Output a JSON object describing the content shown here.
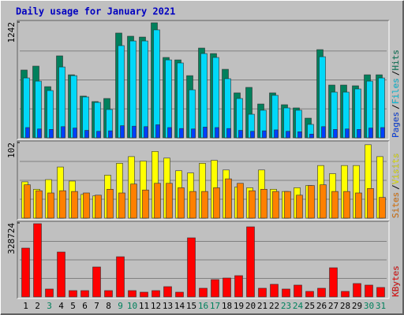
{
  "title": "Daily usage for January 2021",
  "legend_separator": "/",
  "chart_data": [
    {
      "type": "bar",
      "ylim": [
        0,
        1242
      ],
      "yticks": [
        1242
      ],
      "series": [
        {
          "name": "Hits",
          "color": "#00805c",
          "values": [
            727,
            769,
            549,
            879,
            676,
            448,
            389,
            422,
            1124,
            1090,
            1081,
            1234,
            862,
            836,
            667,
            963,
            904,
            735,
            482,
            541,
            363,
            482,
            355,
            321,
            211,
            946,
            566,
            566,
            558,
            676,
            676
          ]
        },
        {
          "name": "Files",
          "color": "#00d8f8",
          "values": [
            642,
            608,
            507,
            760,
            667,
            439,
            380,
            304,
            989,
            1039,
            1039,
            1158,
            836,
            803,
            515,
            904,
            862,
            634,
            422,
            253,
            296,
            456,
            321,
            296,
            144,
            870,
            490,
            490,
            524,
            608,
            642
          ]
        },
        {
          "name": "Pages",
          "color": "#0040ff",
          "values": [
            110,
            95,
            90,
            120,
            105,
            80,
            70,
            75,
            130,
            125,
            120,
            140,
            110,
            100,
            95,
            115,
            110,
            100,
            80,
            70,
            75,
            85,
            70,
            65,
            40,
            120,
            90,
            95,
            90,
            105,
            110
          ]
        }
      ]
    },
    {
      "type": "bar",
      "ylim": [
        0,
        102
      ],
      "yticks": [
        102
      ],
      "series": [
        {
          "name": "Visits",
          "color": "#ffff00",
          "values": [
            49,
            39,
            52,
            69,
            50,
            32,
            30,
            58,
            74,
            83,
            77,
            90,
            81,
            64,
            61,
            74,
            78,
            65,
            42,
            41,
            65,
            39,
            36,
            41,
            44,
            71,
            60,
            71,
            71,
            99,
            83
          ]
        },
        {
          "name": "Sites",
          "color": "#ff8000",
          "values": [
            45,
            37,
            34,
            37,
            36,
            34,
            31,
            39,
            34,
            46,
            38,
            47,
            47,
            41,
            36,
            36,
            41,
            53,
            47,
            37,
            39,
            36,
            36,
            31,
            44,
            45,
            36,
            36,
            34,
            40,
            28
          ]
        }
      ]
    },
    {
      "type": "bar",
      "ylim": [
        0,
        328724
      ],
      "yticks": [
        328724
      ],
      "categories": [
        "1",
        "2",
        "3",
        "4",
        "5",
        "6",
        "7",
        "8",
        "9",
        "10",
        "11",
        "12",
        "13",
        "14",
        "15",
        "16",
        "17",
        "18",
        "19",
        "20",
        "21",
        "22",
        "23",
        "24",
        "25",
        "26",
        "27",
        "28",
        "29",
        "30",
        "31"
      ],
      "category_colors": [
        "#000000",
        "#000000",
        "#00805c",
        "#000000",
        "#000000",
        "#000000",
        "#000000",
        "#000000",
        "#00805c",
        "#00805c",
        "#000000",
        "#000000",
        "#000000",
        "#000000",
        "#000000",
        "#00805c",
        "#00805c",
        "#000000",
        "#000000",
        "#000000",
        "#000000",
        "#000000",
        "#00805c",
        "#00805c",
        "#000000",
        "#000000",
        "#000000",
        "#000000",
        "#000000",
        "#00805c",
        "#00805c"
      ],
      "series": [
        {
          "name": "KBytes",
          "color": "#ff0000",
          "values": [
            216800,
            325200,
            35000,
            199300,
            28000,
            28000,
            132900,
            28000,
            178300,
            28000,
            21000,
            28000,
            45500,
            21000,
            262300,
            38500,
            76900,
            83900,
            94400,
            311200,
            38500,
            56000,
            35000,
            52500,
            24500,
            38500,
            129400,
            24500,
            59400,
            52500,
            42000
          ]
        }
      ]
    }
  ]
}
